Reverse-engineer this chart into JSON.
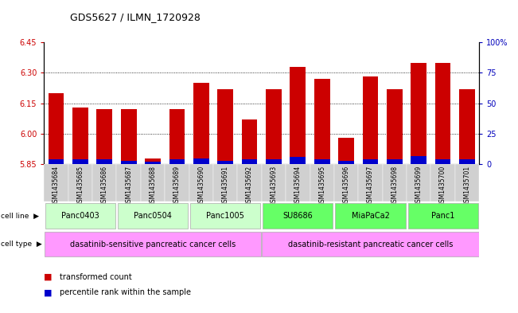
{
  "title": "GDS5627 / ILMN_1720928",
  "samples": [
    "GSM1435684",
    "GSM1435685",
    "GSM1435686",
    "GSM1435687",
    "GSM1435688",
    "GSM1435689",
    "GSM1435690",
    "GSM1435691",
    "GSM1435692",
    "GSM1435693",
    "GSM1435694",
    "GSM1435695",
    "GSM1435696",
    "GSM1435697",
    "GSM1435698",
    "GSM1435699",
    "GSM1435700",
    "GSM1435701"
  ],
  "transformed_count": [
    6.2,
    6.13,
    6.12,
    6.12,
    5.88,
    6.12,
    6.25,
    6.22,
    6.07,
    6.22,
    6.33,
    6.27,
    5.98,
    6.28,
    6.22,
    6.35,
    6.35,
    6.22
  ],
  "percentile_rank": [
    4,
    4,
    4,
    3,
    2,
    4,
    5,
    3,
    4,
    4,
    6,
    4,
    3,
    4,
    4,
    7,
    4,
    4
  ],
  "ylim_left": [
    5.85,
    6.45
  ],
  "ylim_right": [
    0,
    100
  ],
  "yticks_left": [
    5.85,
    6.0,
    6.15,
    6.3,
    6.45
  ],
  "yticks_right": [
    0,
    25,
    50,
    75,
    100
  ],
  "cell_line_groups": [
    {
      "label": "Panc0403",
      "start": 0,
      "end": 3,
      "color": "#ccffcc"
    },
    {
      "label": "Panc0504",
      "start": 3,
      "end": 6,
      "color": "#ccffcc"
    },
    {
      "label": "Panc1005",
      "start": 6,
      "end": 9,
      "color": "#ccffcc"
    },
    {
      "label": "SU8686",
      "start": 9,
      "end": 12,
      "color": "#66ff66"
    },
    {
      "label": "MiaPaCa2",
      "start": 12,
      "end": 15,
      "color": "#66ff66"
    },
    {
      "label": "Panc1",
      "start": 15,
      "end": 18,
      "color": "#66ff66"
    }
  ],
  "cell_type_groups": [
    {
      "label": "dasatinib-sensitive pancreatic cancer cells",
      "start": 0,
      "end": 9,
      "color": "#ff99ff"
    },
    {
      "label": "dasatinib-resistant pancreatic cancer cells",
      "start": 9,
      "end": 18,
      "color": "#ff99ff"
    }
  ],
  "bar_color": "#cc0000",
  "percentile_color": "#0000cc",
  "axis_color_left": "#cc0000",
  "axis_color_right": "#0000bb",
  "grid_yticks": [
    6.0,
    6.15,
    6.3
  ]
}
